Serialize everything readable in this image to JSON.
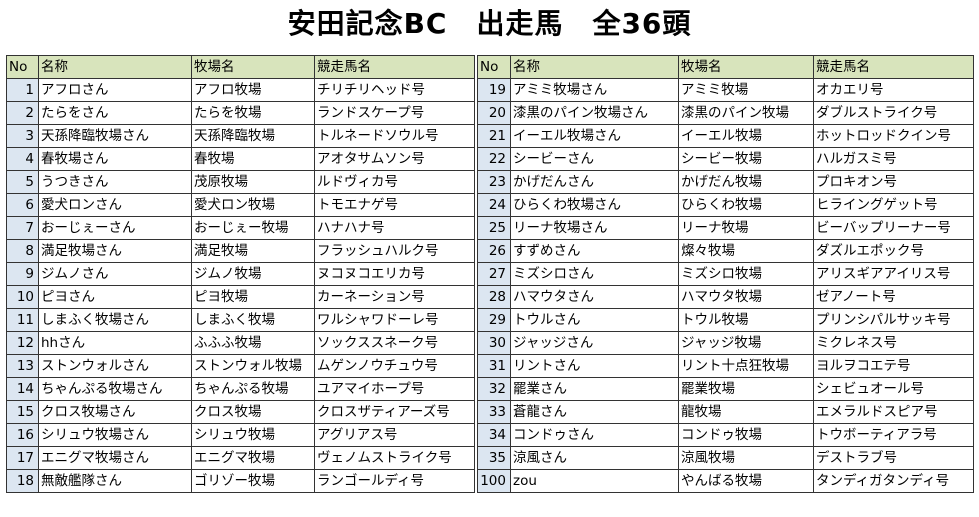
{
  "title": "安田記念BC　出走馬　全36頭",
  "headers": {
    "no": "No",
    "name": "名称",
    "farm": "牧場名",
    "horse": "競走馬名"
  },
  "left": [
    {
      "no": "1",
      "name": "アフロさん",
      "farm": "アフロ牧場",
      "horse": "チリチリヘッド号"
    },
    {
      "no": "2",
      "name": "たらをさん",
      "farm": "たらを牧場",
      "horse": "ランドスケープ号"
    },
    {
      "no": "3",
      "name": "天孫降臨牧場さん",
      "farm": "天孫降臨牧場",
      "horse": "トルネードソウル号"
    },
    {
      "no": "4",
      "name": "春牧場さん",
      "farm": "春牧場",
      "horse": "アオタサムソン号"
    },
    {
      "no": "5",
      "name": "うつきさん",
      "farm": "茂原牧場",
      "horse": "ルドヴィカ号"
    },
    {
      "no": "6",
      "name": "愛犬ロンさん",
      "farm": "愛犬ロン牧場",
      "horse": "トモエナゲ号"
    },
    {
      "no": "7",
      "name": "おーじぇーさん",
      "farm": "おーじぇー牧場",
      "horse": "ハナハナ号"
    },
    {
      "no": "8",
      "name": "満足牧場さん",
      "farm": "満足牧場",
      "horse": "フラッシュハルク号"
    },
    {
      "no": "9",
      "name": "ジムノさん",
      "farm": "ジムノ牧場",
      "horse": "ヌコヌコエリカ号"
    },
    {
      "no": "10",
      "name": "ピヨさん",
      "farm": "ピヨ牧場",
      "horse": "カーネーション号"
    },
    {
      "no": "11",
      "name": "しまふく牧場さん",
      "farm": "しまふく牧場",
      "horse": "ワルシャワドーレ号"
    },
    {
      "no": "12",
      "name": "hhさん",
      "farm": "ふふふ牧場",
      "horse": "ソックススネーク号"
    },
    {
      "no": "13",
      "name": "ストンウォルさん",
      "farm": "ストンウォル牧場",
      "horse": "ムゲンノウチュウ号"
    },
    {
      "no": "14",
      "name": "ちゃんぷる牧場さん",
      "farm": "ちゃんぷる牧場",
      "horse": "ユアマイホープ号"
    },
    {
      "no": "15",
      "name": "クロス牧場さん",
      "farm": "クロス牧場",
      "horse": "クロスザティアーズ号"
    },
    {
      "no": "16",
      "name": "シリュウ牧場さん",
      "farm": "シリュウ牧場",
      "horse": "アグリアス号"
    },
    {
      "no": "17",
      "name": "エニグマ牧場さん",
      "farm": "エニグマ牧場",
      "horse": "ヴェノムストライク号"
    },
    {
      "no": "18",
      "name": "無敵艦隊さん",
      "farm": "ゴリゾー牧場",
      "horse": "ランゴールディ号"
    }
  ],
  "right": [
    {
      "no": "19",
      "name": "アミミ牧場さん",
      "farm": "アミミ牧場",
      "horse": "オカエリ号"
    },
    {
      "no": "20",
      "name": "漆黒のパイン牧場さん",
      "farm": "漆黒のパイン牧場",
      "horse": "ダブルストライク号"
    },
    {
      "no": "21",
      "name": "イーエル牧場さん",
      "farm": "イーエル牧場",
      "horse": "ホットロッドクイン号"
    },
    {
      "no": "22",
      "name": "シービーさん",
      "farm": "シービー牧場",
      "horse": "ハルガスミ号"
    },
    {
      "no": "23",
      "name": "かげだんさん",
      "farm": "かげだん牧場",
      "horse": "プロキオン号"
    },
    {
      "no": "24",
      "name": "ひらくわ牧場さん",
      "farm": "ひらくわ牧場",
      "horse": "ヒライングゲット号"
    },
    {
      "no": "25",
      "name": "リーナ牧場さん",
      "farm": "リーナ牧場",
      "horse": "ビーバップリーナー号"
    },
    {
      "no": "26",
      "name": "すずめさん",
      "farm": "燦々牧場",
      "horse": "ダズルエポック号"
    },
    {
      "no": "27",
      "name": "ミズシロさん",
      "farm": "ミズシロ牧場",
      "horse": "アリスギアアイリス号"
    },
    {
      "no": "28",
      "name": "ハマウタさん",
      "farm": "ハマウタ牧場",
      "horse": "ゼアノート号"
    },
    {
      "no": "29",
      "name": "トウルさん",
      "farm": "トウル牧場",
      "horse": "プリンシパルサッキ号"
    },
    {
      "no": "30",
      "name": "ジャッジさん",
      "farm": "ジャッジ牧場",
      "horse": "ミクレネス号"
    },
    {
      "no": "31",
      "name": "リントさん",
      "farm": "リント十点狂牧場",
      "horse": "ヨルヲコエテ号"
    },
    {
      "no": "32",
      "name": "罷業さん",
      "farm": "罷業牧場",
      "horse": "シェビュオール号"
    },
    {
      "no": "33",
      "name": "蒼龍さん",
      "farm": "龍牧場",
      "horse": "エメラルドスピア号"
    },
    {
      "no": "34",
      "name": "コンドゥさん",
      "farm": "コンドゥ牧場",
      "horse": "トウボーティアラ号"
    },
    {
      "no": "35",
      "name": "涼風さん",
      "farm": "涼風牧場",
      "horse": "デストラブ号"
    },
    {
      "no": "100",
      "name": "zou",
      "farm": "やんばる牧場",
      "horse": "タンディガタンディ号"
    }
  ]
}
